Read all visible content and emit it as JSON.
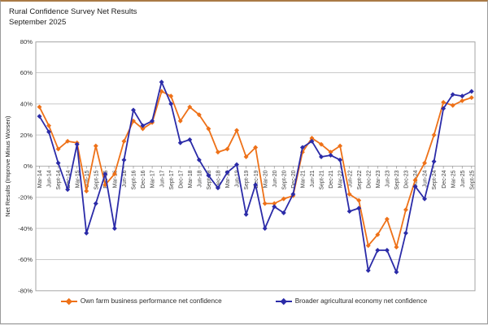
{
  "window": {
    "title_line1": "Rural Confidence Survey Net Results",
    "title_line2": "September 2025"
  },
  "chart_data": {
    "type": "line",
    "title": "Rural Confidence Survey Net Results",
    "subtitle": "September 2025",
    "xlabel": "",
    "ylabel": "Net Results (Improve Minus Worsen)",
    "ylim": [
      -80,
      80
    ],
    "ytick_step": 20,
    "ytick_format": "percent",
    "grid": true,
    "legend_position": "bottom",
    "categories": [
      "Mar-14",
      "Jun-14",
      "Sept-14",
      "Dec-14",
      "Mar-15",
      "Jun-15",
      "Sept-15",
      "Dec-15",
      "Mar-16",
      "Jun-16",
      "Sept-16",
      "Dec-16",
      "Mar-17",
      "Jun-17",
      "Sept-17",
      "Dec-17",
      "Mar-18",
      "Jun-18",
      "Sept-18",
      "Dec-18",
      "Mar-19",
      "Jun-19",
      "Sept-19",
      "Dec-19",
      "Mar-20",
      "Jun-20",
      "Sept-20",
      "Dec-20",
      "Mar-21",
      "Jun-21",
      "Sept-21",
      "Dec-21",
      "Mar-22",
      "Jun-22",
      "Sept-22",
      "Dec-22",
      "Mar-23",
      "Jun-23",
      "Sept-23",
      "Dec-23",
      "Mar-24",
      "Jun-24",
      "Sept-24",
      "Dec-24",
      "Mar-25",
      "Jun-25",
      "Sept-25"
    ],
    "series": [
      {
        "name": "Own farm business performance net confidence",
        "color": "#EE7118",
        "values": [
          38,
          26,
          11,
          16,
          15,
          -16,
          13,
          -12,
          -5,
          16,
          29,
          24,
          28,
          48,
          45,
          29,
          38,
          33,
          24,
          9,
          11,
          23,
          6,
          12,
          -24,
          -24,
          -21,
          -19,
          9,
          18,
          14,
          9,
          13,
          -18,
          -22,
          -51,
          -44,
          -34,
          -52,
          -28,
          -9,
          2,
          20,
          41,
          39,
          42,
          44
        ]
      },
      {
        "name": "Broader agricultural economy net confidence",
        "color": "#2B2BA8",
        "values": [
          32,
          22,
          2,
          -15,
          14,
          -43,
          -24,
          -5,
          -40,
          4,
          36,
          26,
          29,
          54,
          40,
          15,
          17,
          4,
          -6,
          -14,
          -4,
          1,
          -31,
          -12,
          -40,
          -26,
          -30,
          -18,
          12,
          16,
          6,
          7,
          4,
          -29,
          -27,
          -67,
          -54,
          -54,
          -68,
          -43,
          -13,
          -21,
          3,
          37,
          46,
          45,
          48
        ]
      }
    ],
    "colors": {
      "gridline": "#c9c9c9",
      "axis_line": "#a6a6a6",
      "tick": "#8c8c8c",
      "label_text": "#3d3d3d"
    }
  }
}
